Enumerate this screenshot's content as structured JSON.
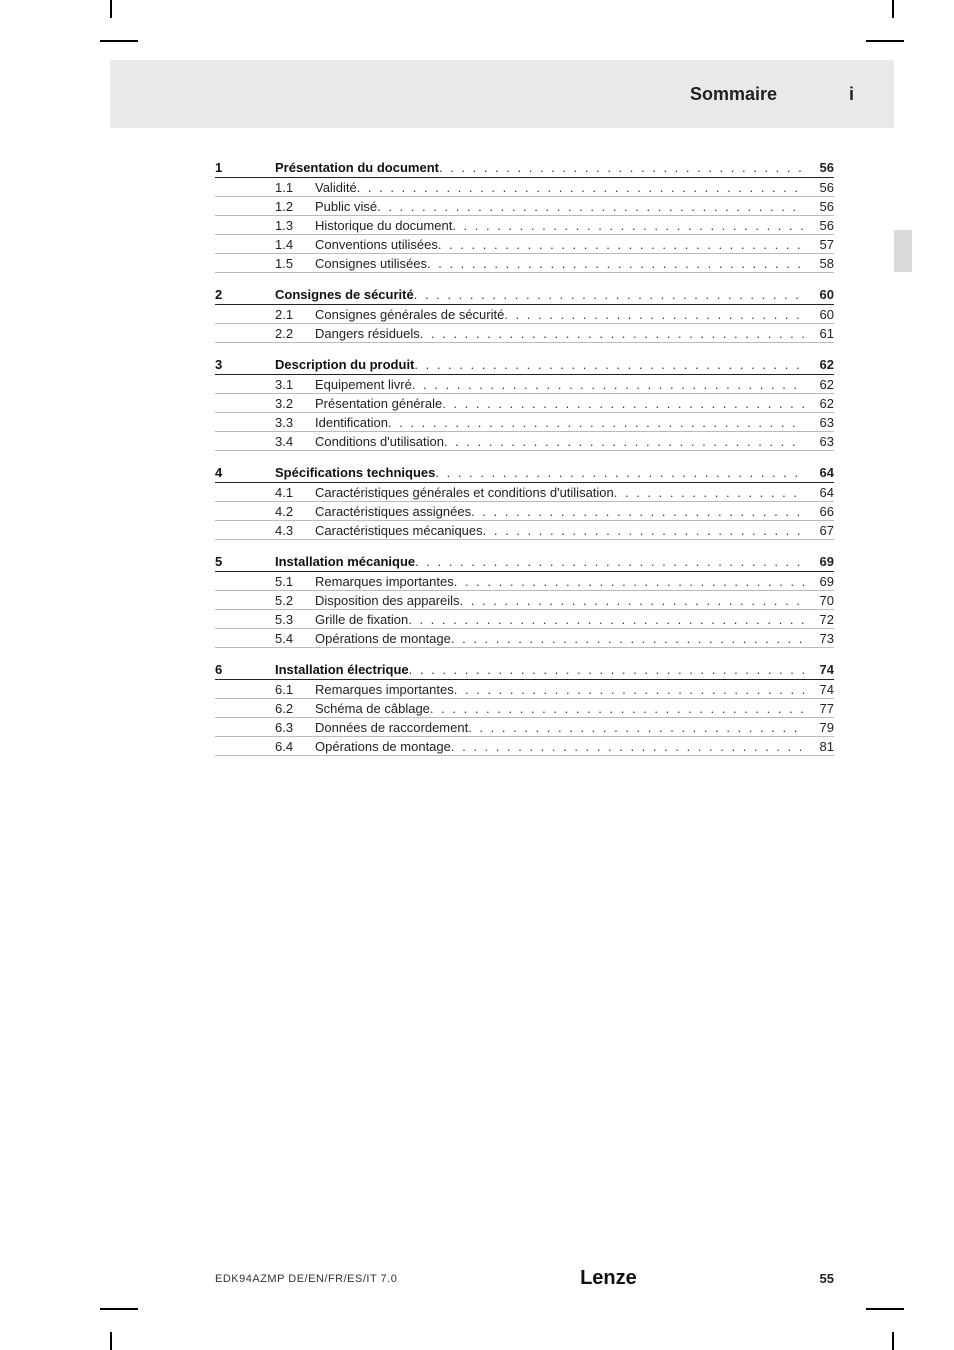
{
  "header": {
    "title": "Sommaire",
    "mark": "i"
  },
  "footer": {
    "doc_ref": "EDK94AZMP  DE/EN/FR/ES/IT  7.0",
    "logo": "Lenze",
    "page_number": "55"
  },
  "toc": [
    {
      "num": "1",
      "title": "Présentation du document",
      "page": "56",
      "subs": [
        {
          "num": "1.1",
          "title": "Validité",
          "page": "56"
        },
        {
          "num": "1.2",
          "title": "Public visé",
          "page": "56"
        },
        {
          "num": "1.3",
          "title": "Historique du document",
          "page": "56"
        },
        {
          "num": "1.4",
          "title": "Conventions utilisées",
          "page": "57"
        },
        {
          "num": "1.5",
          "title": "Consignes utilisées",
          "page": "58"
        }
      ]
    },
    {
      "num": "2",
      "title": "Consignes de sécurité",
      "page": "60",
      "subs": [
        {
          "num": "2.1",
          "title": "Consignes générales de sécurité",
          "page": "60"
        },
        {
          "num": "2.2",
          "title": "Dangers résiduels",
          "page": "61"
        }
      ]
    },
    {
      "num": "3",
      "title": "Description du produit",
      "page": "62",
      "subs": [
        {
          "num": "3.1",
          "title": "Equipement livré",
          "page": "62"
        },
        {
          "num": "3.2",
          "title": "Présentation générale",
          "page": "62"
        },
        {
          "num": "3.3",
          "title": "Identification",
          "page": "63"
        },
        {
          "num": "3.4",
          "title": "Conditions d'utilisation",
          "page": "63"
        }
      ]
    },
    {
      "num": "4",
      "title": "Spécifications techniques",
      "page": "64",
      "subs": [
        {
          "num": "4.1",
          "title": "Caractéristiques générales et conditions d'utilisation",
          "page": "64"
        },
        {
          "num": "4.2",
          "title": "Caractéristiques assignées",
          "page": "66"
        },
        {
          "num": "4.3",
          "title": "Caractéristiques mécaniques",
          "page": "67"
        }
      ]
    },
    {
      "num": "5",
      "title": "Installation mécanique",
      "page": "69",
      "subs": [
        {
          "num": "5.1",
          "title": "Remarques importantes",
          "page": "69"
        },
        {
          "num": "5.2",
          "title": "Disposition des appareils",
          "page": "70"
        },
        {
          "num": "5.3",
          "title": "Grille de fixation",
          "page": "72"
        },
        {
          "num": "5.4",
          "title": "Opérations de montage",
          "page": "73"
        }
      ]
    },
    {
      "num": "6",
      "title": "Installation électrique",
      "page": "74",
      "subs": [
        {
          "num": "6.1",
          "title": "Remarques importantes",
          "page": "74"
        },
        {
          "num": "6.2",
          "title": "Schéma de câblage",
          "page": "77"
        },
        {
          "num": "6.3",
          "title": "Données de raccordement",
          "page": "79"
        },
        {
          "num": "6.4",
          "title": "Opérations de montage",
          "page": "81"
        }
      ]
    }
  ]
}
